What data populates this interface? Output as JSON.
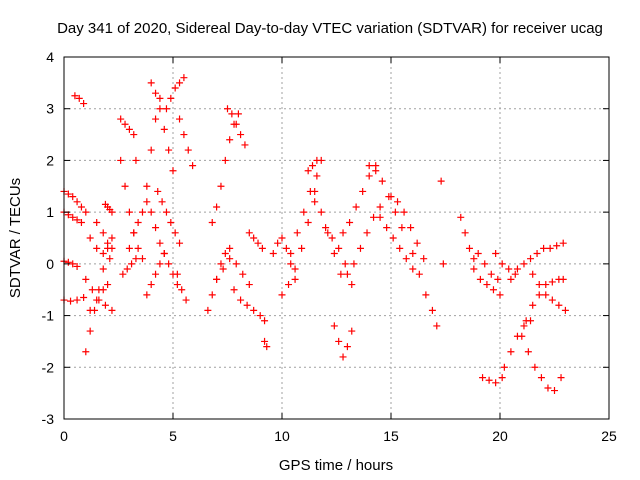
{
  "chart_data": {
    "type": "scatter",
    "title": "Day 341 of 2020, Sidereal Day-to-day VTEC variation (SDTVAR) for receiver ucag",
    "xlabel": "GPS time / hours",
    "ylabel": "SDTVAR / TECUs",
    "xlim": [
      0,
      25
    ],
    "ylim": [
      -3,
      4
    ],
    "xticks": [
      "0",
      "5",
      "10",
      "15",
      "20",
      "25"
    ],
    "yticks": [
      "4",
      "3",
      "2",
      "1",
      "0",
      "-1",
      "-2",
      "-3"
    ],
    "grid": true,
    "marker": "plus",
    "color": "#ff0000",
    "series": [
      {
        "name": "t1",
        "x": [
          0.0,
          0.2,
          0.4,
          0.6,
          0.8,
          1.0
        ],
        "y": [
          1.4,
          1.35,
          1.3,
          1.2,
          1.1,
          1.0
        ]
      },
      {
        "name": "t2",
        "x": [
          0.0,
          0.2,
          0.4,
          0.6,
          0.8
        ],
        "y": [
          1.0,
          0.95,
          0.9,
          0.85,
          0.8
        ]
      },
      {
        "name": "t3",
        "x": [
          0.0,
          0.2,
          0.4,
          0.6
        ],
        "y": [
          0.05,
          0.03,
          0.0,
          -0.05
        ]
      },
      {
        "name": "t4",
        "x": [
          0.0,
          0.3,
          0.6,
          0.9
        ],
        "y": [
          -0.7,
          -0.72,
          -0.7,
          -0.65
        ]
      },
      {
        "name": "t5",
        "x": [
          0.5,
          0.7,
          0.9
        ],
        "y": [
          3.25,
          3.2,
          3.1
        ]
      },
      {
        "name": "t6",
        "x": [
          1.0,
          1.2,
          1.4,
          1.6,
          1.8,
          2.0,
          2.2
        ],
        "y": [
          -1.7,
          -1.3,
          -0.9,
          -0.5,
          -0.1,
          0.3,
          0.5
        ]
      },
      {
        "name": "t7",
        "x": [
          1.0,
          1.3,
          1.6,
          1.9,
          2.2
        ],
        "y": [
          -0.3,
          -0.5,
          -0.7,
          -0.8,
          -0.9
        ]
      },
      {
        "name": "t8",
        "x": [
          1.2,
          1.5,
          1.8,
          2.1
        ],
        "y": [
          0.5,
          0.3,
          0.2,
          0.1
        ]
      },
      {
        "name": "t9",
        "x": [
          1.2,
          1.5,
          1.8,
          2.0
        ],
        "y": [
          -0.9,
          -0.7,
          -0.5,
          -0.4
        ]
      },
      {
        "name": "t10",
        "x": [
          1.5,
          1.8,
          2.0,
          2.2
        ],
        "y": [
          0.8,
          0.6,
          0.4,
          0.3
        ]
      },
      {
        "name": "t11",
        "x": [
          1.9,
          2.0,
          2.1,
          2.2
        ],
        "y": [
          1.15,
          1.1,
          1.05,
          1.0
        ]
      },
      {
        "name": "t12",
        "x": [
          2.6,
          2.8,
          3.0,
          3.2,
          3.3
        ],
        "y": [
          2.8,
          2.7,
          2.6,
          2.5,
          2.0
        ]
      },
      {
        "name": "t13",
        "x": [
          2.6,
          2.8,
          3.0,
          3.2,
          3.4,
          3.6
        ],
        "y": [
          2.0,
          1.5,
          1.0,
          0.6,
          0.3,
          0.1
        ]
      },
      {
        "name": "t14",
        "x": [
          2.7,
          2.9,
          3.1,
          3.3
        ],
        "y": [
          -0.2,
          -0.1,
          0.0,
          0.1
        ]
      },
      {
        "name": "t15",
        "x": [
          3.0,
          3.2,
          3.4,
          3.6,
          3.8
        ],
        "y": [
          0.3,
          0.6,
          0.8,
          1.0,
          1.2
        ]
      },
      {
        "name": "t16",
        "x": [
          3.8,
          4.0,
          4.2,
          4.4
        ],
        "y": [
          1.5,
          2.2,
          2.8,
          3.2
        ]
      },
      {
        "name": "t17",
        "x": [
          4.0,
          4.2,
          4.4,
          4.6,
          4.8,
          5.0
        ],
        "y": [
          3.5,
          3.3,
          3.0,
          2.6,
          2.2,
          1.8
        ]
      },
      {
        "name": "t18",
        "x": [
          4.3,
          4.5,
          4.7,
          4.9,
          5.1,
          5.3
        ],
        "y": [
          1.4,
          1.2,
          1.0,
          0.8,
          0.6,
          0.4
        ]
      },
      {
        "name": "t19",
        "x": [
          4.0,
          4.2,
          4.4,
          4.6,
          4.8,
          5.0,
          5.2
        ],
        "y": [
          1.0,
          0.7,
          0.4,
          0.2,
          0.0,
          -0.2,
          -0.4
        ]
      },
      {
        "name": "t20",
        "x": [
          3.8,
          4.0,
          4.2,
          4.4,
          4.6
        ],
        "y": [
          -0.6,
          -0.4,
          -0.2,
          0.0,
          0.2
        ]
      },
      {
        "name": "t21",
        "x": [
          4.7,
          4.9,
          5.1,
          5.3,
          5.5
        ],
        "y": [
          3.0,
          3.2,
          3.4,
          3.5,
          3.6
        ]
      },
      {
        "name": "t22",
        "x": [
          5.3,
          5.5,
          5.7,
          5.9
        ],
        "y": [
          2.8,
          2.5,
          2.2,
          1.9
        ]
      },
      {
        "name": "t23",
        "x": [
          5.2,
          5.4,
          5.6
        ],
        "y": [
          -0.2,
          -0.5,
          -0.7
        ]
      },
      {
        "name": "t24",
        "x": [
          6.6,
          6.8,
          7.0,
          7.2,
          7.4,
          7.6
        ],
        "y": [
          -0.9,
          -0.6,
          -0.3,
          0.0,
          0.2,
          0.3
        ]
      },
      {
        "name": "t25",
        "x": [
          6.8,
          7.0,
          7.2,
          7.4,
          7.6,
          7.8,
          8.0
        ],
        "y": [
          0.8,
          1.1,
          1.5,
          2.0,
          2.4,
          2.7,
          2.9
        ]
      },
      {
        "name": "t26",
        "x": [
          7.5,
          7.7,
          7.9,
          8.1,
          8.3
        ],
        "y": [
          3.0,
          2.9,
          2.7,
          2.5,
          2.3
        ]
      },
      {
        "name": "t27",
        "x": [
          7.0,
          7.3,
          7.6,
          7.9,
          8.2,
          8.5
        ],
        "y": [
          -0.3,
          -0.1,
          0.1,
          0.0,
          -0.2,
          -0.4
        ]
      },
      {
        "name": "t28",
        "x": [
          7.8,
          8.1,
          8.4,
          8.7,
          9.0,
          9.2
        ],
        "y": [
          -0.5,
          -0.7,
          -0.8,
          -0.9,
          -1.0,
          -1.1
        ]
      },
      {
        "name": "t29",
        "x": [
          8.5,
          8.7,
          8.9,
          9.1
        ],
        "y": [
          0.6,
          0.5,
          0.4,
          0.3
        ]
      },
      {
        "name": "t30",
        "x": [
          9.2,
          9.3
        ],
        "y": [
          -1.5,
          -1.6
        ]
      },
      {
        "name": "t31",
        "x": [
          9.6,
          9.8,
          10.0,
          10.2,
          10.4,
          10.6
        ],
        "y": [
          0.2,
          0.4,
          0.5,
          0.3,
          0.0,
          -0.3
        ]
      },
      {
        "name": "t32",
        "x": [
          10.0,
          10.3,
          10.6,
          10.9,
          11.2,
          11.5
        ],
        "y": [
          -0.6,
          -0.4,
          -0.1,
          0.3,
          0.8,
          1.2
        ]
      },
      {
        "name": "t33",
        "x": [
          10.4,
          10.7,
          11.0,
          11.3,
          11.6
        ],
        "y": [
          0.2,
          0.6,
          1.0,
          1.4,
          1.7
        ]
      },
      {
        "name": "t34",
        "x": [
          11.2,
          11.4,
          11.6,
          11.8
        ],
        "y": [
          1.8,
          1.9,
          2.0,
          2.0
        ]
      },
      {
        "name": "t35",
        "x": [
          11.5,
          11.8,
          12.1,
          12.4,
          12.7
        ],
        "y": [
          1.4,
          1.0,
          0.6,
          0.2,
          -0.2
        ]
      },
      {
        "name": "t36",
        "x": [
          12.0,
          12.3,
          12.6,
          12.9,
          13.2
        ],
        "y": [
          0.7,
          0.5,
          0.3,
          0.0,
          -0.4
        ]
      },
      {
        "name": "t37",
        "x": [
          12.4,
          12.6,
          12.8,
          13.0,
          13.2
        ],
        "y": [
          -1.2,
          -1.5,
          -1.8,
          -1.6,
          -1.3
        ]
      },
      {
        "name": "t38",
        "x": [
          12.8,
          13.1,
          13.4,
          13.7,
          14.0,
          14.3
        ],
        "y": [
          0.6,
          0.8,
          1.1,
          1.4,
          1.7,
          1.9
        ]
      },
      {
        "name": "t39",
        "x": [
          13.0,
          13.3,
          13.6,
          13.9,
          14.2,
          14.5
        ],
        "y": [
          -0.2,
          0.0,
          0.3,
          0.6,
          0.9,
          1.1
        ]
      },
      {
        "name": "t40",
        "x": [
          14.0,
          14.3,
          14.6,
          14.9,
          15.2,
          15.5
        ],
        "y": [
          1.9,
          1.8,
          1.6,
          1.3,
          1.0,
          0.7
        ]
      },
      {
        "name": "t41",
        "x": [
          14.5,
          14.8,
          15.1,
          15.4,
          15.7,
          16.0
        ],
        "y": [
          0.9,
          0.7,
          0.5,
          0.3,
          0.1,
          -0.1
        ]
      },
      {
        "name": "t42",
        "x": [
          15.0,
          15.3,
          15.6,
          15.9,
          16.2,
          16.5
        ],
        "y": [
          1.3,
          1.2,
          1.0,
          0.7,
          0.4,
          0.1
        ]
      },
      {
        "name": "t43",
        "x": [
          16.0,
          16.3,
          16.6,
          16.9,
          17.1
        ],
        "y": [
          0.2,
          -0.2,
          -0.6,
          -0.9,
          -1.2
        ]
      },
      {
        "name": "t44",
        "x": [
          17.3
        ],
        "y": [
          1.6
        ]
      },
      {
        "name": "t45",
        "x": [
          17.4
        ],
        "y": [
          0.0
        ]
      },
      {
        "name": "t46",
        "x": [
          18.2,
          18.4,
          18.6,
          18.8
        ],
        "y": [
          0.9,
          0.6,
          0.3,
          0.1
        ]
      },
      {
        "name": "t47",
        "x": [
          18.8,
          19.1,
          19.4,
          19.7,
          20.0
        ],
        "y": [
          -0.1,
          -0.3,
          -0.4,
          -0.5,
          -0.6
        ]
      },
      {
        "name": "t48",
        "x": [
          19.0,
          19.3,
          19.6,
          19.9
        ],
        "y": [
          0.2,
          0.0,
          -0.2,
          -0.3
        ]
      },
      {
        "name": "t49",
        "x": [
          19.8,
          20.1,
          20.4,
          20.7
        ],
        "y": [
          0.2,
          0.0,
          -0.1,
          -0.2
        ]
      },
      {
        "name": "t50",
        "x": [
          19.2,
          19.5,
          19.8,
          20.1
        ],
        "y": [
          -2.2,
          -2.25,
          -2.3,
          -2.2
        ]
      },
      {
        "name": "t51",
        "x": [
          20.2,
          20.5,
          20.8,
          21.1,
          21.4
        ],
        "y": [
          -2.0,
          -1.7,
          -1.4,
          -1.2,
          -1.1
        ]
      },
      {
        "name": "t52",
        "x": [
          21.0,
          21.3,
          21.6,
          21.9,
          22.2,
          22.5,
          22.8
        ],
        "y": [
          -1.4,
          -1.7,
          -2.0,
          -2.2,
          -2.4,
          -2.45,
          -2.2
        ]
      },
      {
        "name": "t53",
        "x": [
          21.2,
          21.5,
          21.8,
          22.1,
          22.4,
          22.7,
          22.9
        ],
        "y": [
          -1.1,
          -0.8,
          -0.6,
          -0.4,
          -0.35,
          -0.3,
          -0.3
        ]
      },
      {
        "name": "t54",
        "x": [
          20.5,
          20.8,
          21.1,
          21.4,
          21.7,
          22.0
        ],
        "y": [
          -0.3,
          -0.1,
          0.0,
          0.1,
          0.2,
          0.3
        ]
      },
      {
        "name": "t55",
        "x": [
          21.5,
          21.8,
          22.1,
          22.4,
          22.7,
          23.0
        ],
        "y": [
          -0.2,
          -0.4,
          -0.6,
          -0.7,
          -0.8,
          -0.9
        ]
      },
      {
        "name": "t56",
        "x": [
          22.3,
          22.6,
          22.9
        ],
        "y": [
          0.3,
          0.35,
          0.4
        ]
      }
    ]
  }
}
